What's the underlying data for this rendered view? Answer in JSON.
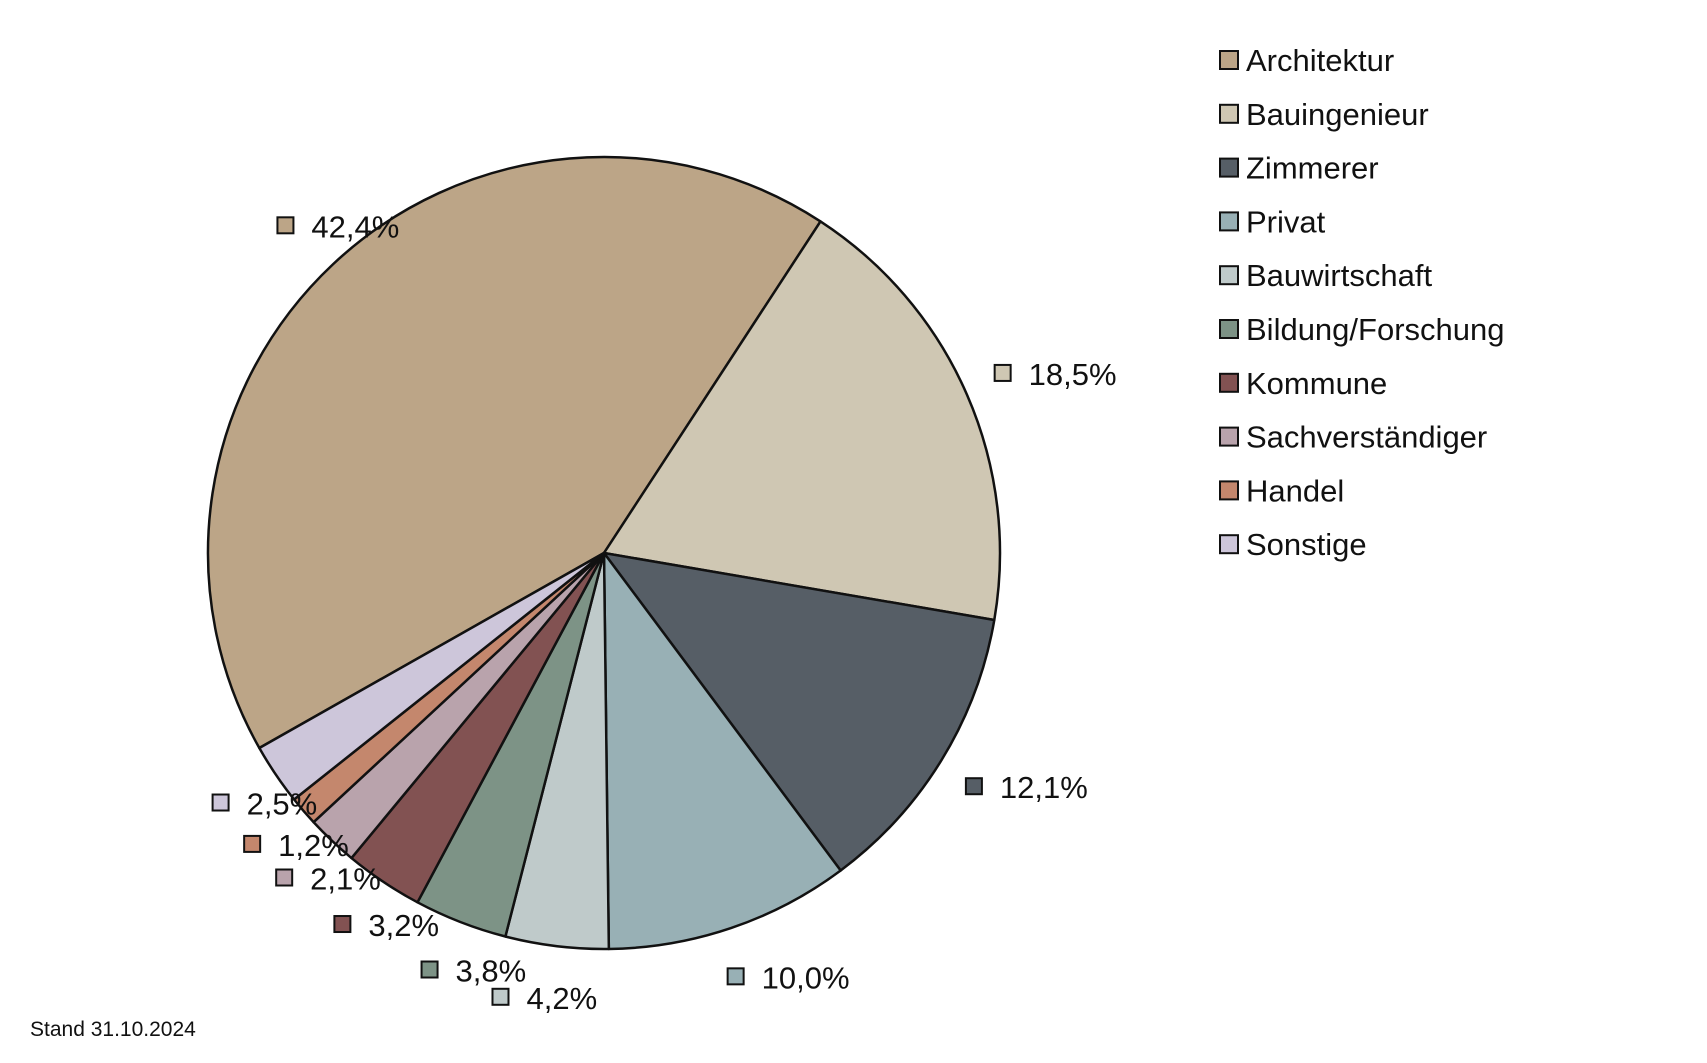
{
  "chart_data": {
    "type": "pie",
    "title": "",
    "start_angle_deg": 240.5,
    "direction": "clockwise",
    "legend_position": "top-right",
    "slices": [
      {
        "label": "Architektur",
        "value": 42.4,
        "value_label": "42,4%",
        "color": "#bca587"
      },
      {
        "label": "Bauingenieur",
        "value": 18.5,
        "value_label": "18,5%",
        "color": "#cfc7b3"
      },
      {
        "label": "Zimmerer",
        "value": 12.1,
        "value_label": "12,1%",
        "color": "#565e66"
      },
      {
        "label": "Privat",
        "value": 10.0,
        "value_label": "10,0%",
        "color": "#98b0b5"
      },
      {
        "label": "Bauwirtschaft",
        "value": 4.2,
        "value_label": "4,2%",
        "color": "#bfcaca"
      },
      {
        "label": "Bildung/Forschung",
        "value": 3.8,
        "value_label": "3,8%",
        "color": "#7d9386"
      },
      {
        "label": "Kommune",
        "value": 3.2,
        "value_label": "3,2%",
        "color": "#825252"
      },
      {
        "label": "Sachverständiger",
        "value": 2.1,
        "value_label": "2,1%",
        "color": "#b9a3ac"
      },
      {
        "label": "Handel",
        "value": 1.2,
        "value_label": "1,2%",
        "color": "#c4876d"
      },
      {
        "label": "Sonstige",
        "value": 2.5,
        "value_label": "2,5%",
        "color": "#cdc6da"
      }
    ]
  },
  "footnote": "Stand 31.10.2024"
}
